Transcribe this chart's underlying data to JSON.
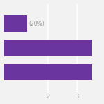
{
  "bars": [
    {
      "value": 1.3,
      "annotation": "(20%)"
    },
    {
      "value": 3.5,
      "annotation": ""
    },
    {
      "value": 3.5,
      "annotation": ""
    }
  ],
  "bar_color": "#6b35a0",
  "annotation_color": "#999999",
  "annotation_fontsize": 5.5,
  "xlim": [
    0.5,
    3.8
  ],
  "xticks": [
    2,
    3
  ],
  "xtick_labels": [
    "2",
    "3"
  ],
  "background_color": "#f2f2f2",
  "bar_height": 0.38,
  "bar_gap": 0.55,
  "grid_color": "#ffffff",
  "tick_fontsize": 6,
  "tick_color": "#aaaaaa"
}
